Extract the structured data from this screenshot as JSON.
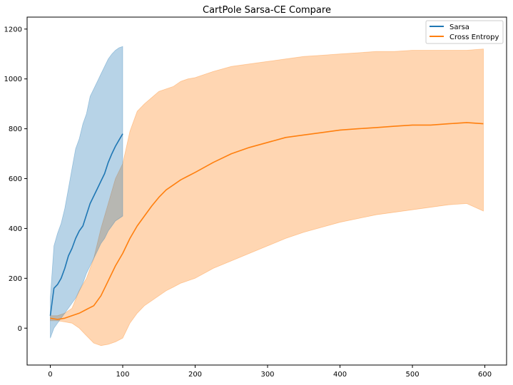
{
  "chart_data": {
    "type": "line",
    "title": "CartPole Sarsa-CE Compare",
    "xlabel": "",
    "ylabel": "",
    "xlim": [
      -32,
      630
    ],
    "ylim": [
      -148,
      1248
    ],
    "xticks": [
      0,
      100,
      200,
      300,
      400,
      500,
      600
    ],
    "yticks": [
      0,
      200,
      400,
      600,
      800,
      1000,
      1200
    ],
    "grid": false,
    "legend_position": "top-right",
    "series": [
      {
        "name": "Sarsa",
        "color": "#1f77b4",
        "band_color": "#1f77b4",
        "x": [
          0,
          5,
          10,
          15,
          20,
          25,
          30,
          35,
          40,
          45,
          50,
          55,
          60,
          65,
          70,
          75,
          80,
          85,
          90,
          95,
          100
        ],
        "mean": [
          50,
          160,
          175,
          200,
          240,
          290,
          320,
          360,
          390,
          410,
          455,
          500,
          530,
          560,
          590,
          620,
          665,
          700,
          730,
          755,
          780
        ],
        "upper": [
          120,
          330,
          380,
          420,
          480,
          560,
          640,
          720,
          760,
          820,
          860,
          930,
          960,
          990,
          1020,
          1050,
          1080,
          1100,
          1115,
          1125,
          1130
        ],
        "lower": [
          -40,
          0,
          20,
          40,
          60,
          80,
          100,
          120,
          150,
          180,
          220,
          250,
          280,
          310,
          340,
          360,
          390,
          410,
          430,
          440,
          450
        ]
      },
      {
        "name": "Cross Entropy",
        "color": "#ff7f0e",
        "band_color": "#ff7f0e",
        "x": [
          0,
          10,
          20,
          30,
          40,
          50,
          60,
          70,
          80,
          90,
          100,
          110,
          120,
          130,
          140,
          150,
          160,
          170,
          180,
          190,
          200,
          225,
          250,
          275,
          300,
          325,
          350,
          375,
          400,
          425,
          450,
          475,
          500,
          525,
          550,
          575,
          598
        ],
        "mean": [
          40,
          35,
          40,
          50,
          60,
          75,
          90,
          130,
          190,
          250,
          300,
          360,
          410,
          450,
          490,
          525,
          555,
          575,
          595,
          610,
          625,
          665,
          700,
          725,
          745,
          765,
          775,
          785,
          795,
          800,
          805,
          810,
          815,
          815,
          820,
          825,
          820
        ],
        "upper": [
          50,
          50,
          60,
          80,
          150,
          200,
          280,
          400,
          500,
          600,
          660,
          790,
          870,
          900,
          925,
          950,
          960,
          970,
          990,
          1000,
          1005,
          1030,
          1050,
          1060,
          1070,
          1080,
          1090,
          1095,
          1100,
          1105,
          1110,
          1110,
          1115,
          1115,
          1115,
          1115,
          1120
        ],
        "lower": [
          30,
          30,
          25,
          20,
          0,
          -30,
          -60,
          -70,
          -65,
          -55,
          -40,
          20,
          60,
          90,
          110,
          130,
          150,
          165,
          180,
          190,
          200,
          240,
          270,
          300,
          330,
          360,
          385,
          405,
          425,
          440,
          455,
          465,
          475,
          485,
          495,
          500,
          470
        ]
      }
    ]
  }
}
